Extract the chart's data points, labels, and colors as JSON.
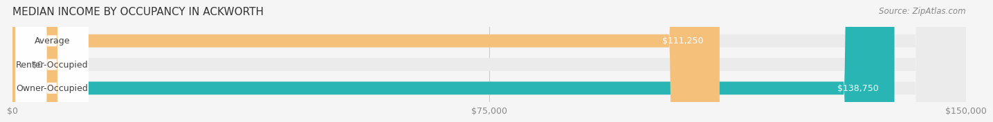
{
  "title": "MEDIAN INCOME BY OCCUPANCY IN ACKWORTH",
  "source": "Source: ZipAtlas.com",
  "categories": [
    "Owner-Occupied",
    "Renter-Occupied",
    "Average"
  ],
  "values": [
    138750,
    0,
    111250
  ],
  "bar_colors": [
    "#2ab5b5",
    "#b89ec4",
    "#f5c07a"
  ],
  "label_colors": [
    "#2ab5b5",
    "#b89ec4",
    "#f5c07a"
  ],
  "bar_labels": [
    "$138,750",
    "$0",
    "$111,250"
  ],
  "xlim": [
    0,
    150000
  ],
  "xticks": [
    0,
    75000,
    150000
  ],
  "xtick_labels": [
    "$0",
    "$75,000",
    "$150,000"
  ],
  "background_color": "#f5f5f5",
  "bar_bg_color": "#ebebeb",
  "title_fontsize": 11,
  "source_fontsize": 8.5,
  "label_fontsize": 9,
  "tick_fontsize": 9,
  "bar_height": 0.55,
  "bar_label_inside_color": "#ffffff",
  "bar_label_outside_color": "#555555"
}
